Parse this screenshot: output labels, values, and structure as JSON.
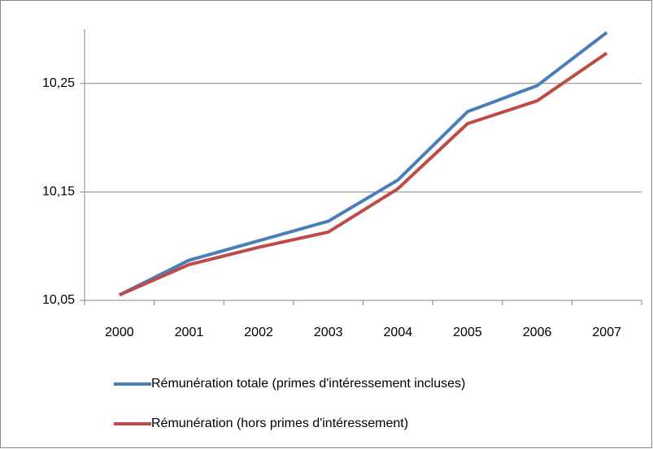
{
  "chart_data": {
    "type": "line",
    "categories": [
      "2000",
      "2001",
      "2002",
      "2003",
      "2004",
      "2005",
      "2006",
      "2007"
    ],
    "series": [
      {
        "name": "Rémunération totale (primes d'intéressement incluses)",
        "color": "#4a7ebb",
        "values": [
          10.055,
          10.087,
          10.105,
          10.123,
          10.161,
          10.224,
          10.248,
          10.297
        ]
      },
      {
        "name": "Rémunération (hors primes d'intéressement)",
        "color": "#be4b48",
        "values": [
          10.055,
          10.083,
          10.099,
          10.113,
          10.153,
          10.213,
          10.234,
          10.278
        ]
      }
    ],
    "ylim": [
      10.05,
      10.3
    ],
    "yticks": [
      {
        "value": 10.05,
        "label": "10,05"
      },
      {
        "value": 10.15,
        "label": "10,15"
      },
      {
        "value": 10.25,
        "label": "10,25"
      }
    ],
    "grid": true,
    "legend": "bottom"
  }
}
